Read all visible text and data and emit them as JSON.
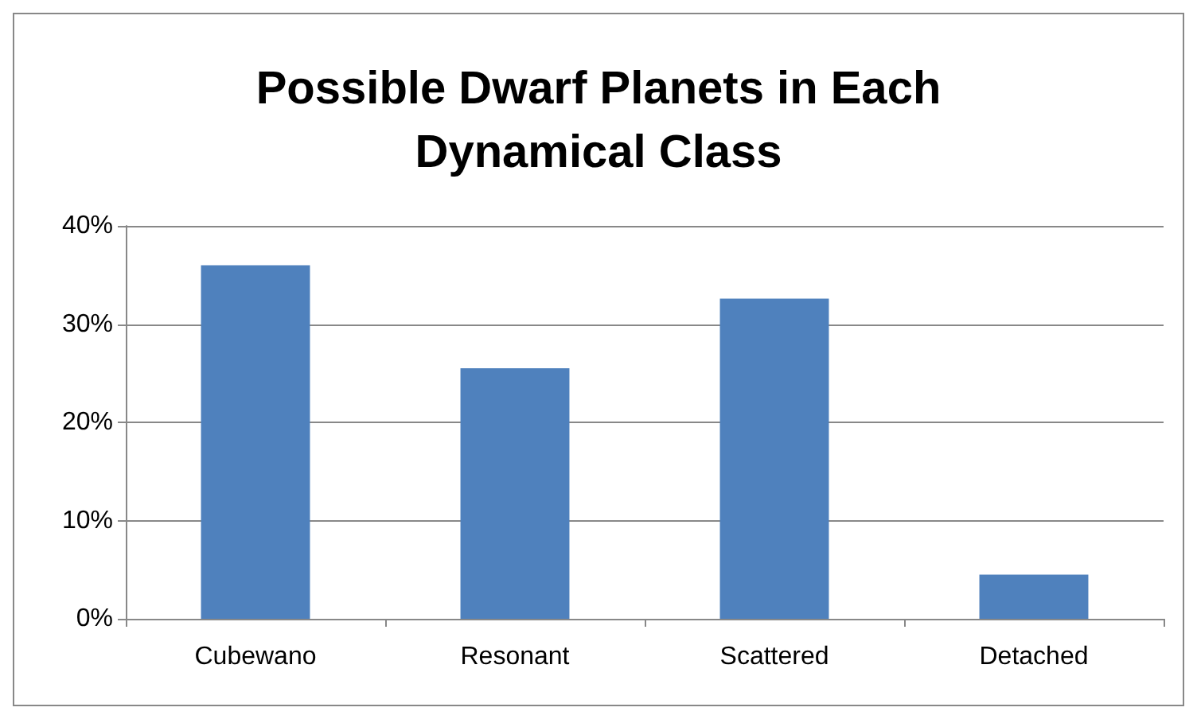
{
  "chart_data": {
    "type": "bar",
    "title": "Possible Dwarf Planets in Each\nDynamical Class",
    "categories": [
      "Cubewano",
      "Resonant",
      "Scattered",
      "Detached"
    ],
    "values": [
      36,
      25.5,
      32.6,
      4.5
    ],
    "color": "#4f81bd",
    "ylim": [
      0,
      40
    ],
    "yticks": [
      {
        "value": 0,
        "label": "0%"
      },
      {
        "value": 10,
        "label": "10%"
      },
      {
        "value": 20,
        "label": "20%"
      },
      {
        "value": 30,
        "label": "30%"
      },
      {
        "value": 40,
        "label": "40%"
      }
    ],
    "grid": "y"
  }
}
